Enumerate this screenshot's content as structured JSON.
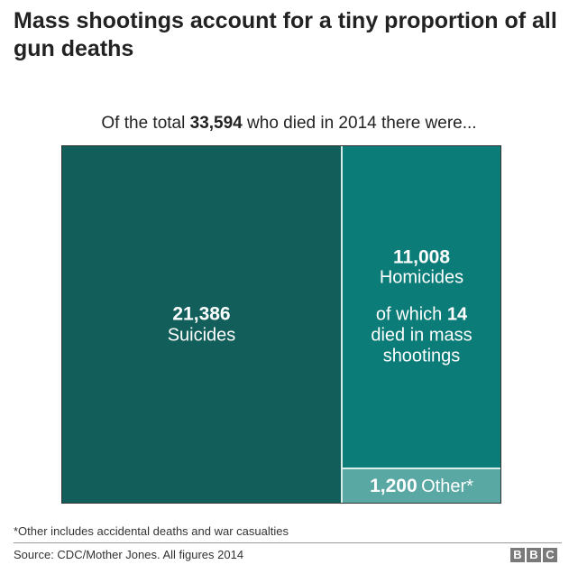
{
  "chart_data": {
    "type": "treemap",
    "title": "Mass shootings account for a tiny proportion of all gun deaths",
    "subtitle_pre": "Of the total ",
    "subtitle_total": "33,594",
    "subtitle_post": " who died in 2014 there were...",
    "total": 33594,
    "series": [
      {
        "name": "Suicides",
        "value": 21386,
        "value_label": "21,386",
        "color": "#115e5a"
      },
      {
        "name": "Homicides",
        "value": 11008,
        "value_label": "11,008",
        "color": "#0b7c78",
        "note_pre": "of which ",
        "note_num": "14",
        "note_post": " died in mass shootings"
      },
      {
        "name": "Other*",
        "value": 1200,
        "value_label": "1,200",
        "color": "#5aa8a4"
      }
    ]
  },
  "footnote": "*Other includes accidental deaths and war casualties",
  "source": "Source: CDC/Mother Jones. All figures 2014",
  "logo": [
    "B",
    "B",
    "C"
  ]
}
